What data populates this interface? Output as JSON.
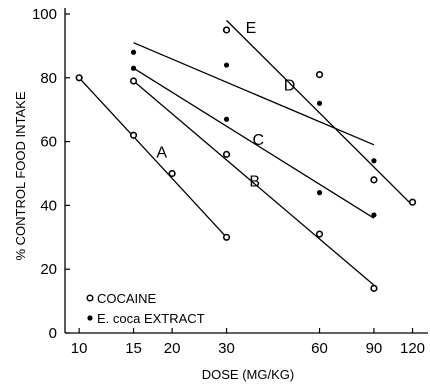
{
  "chart_data": {
    "type": "scatter",
    "title": "",
    "xlabel": "DOSE (MG/KG)",
    "ylabel": "% CONTROL FOOD INTAKE",
    "x_scale": "log",
    "x_ticks": [
      10,
      15,
      20,
      30,
      60,
      90,
      120
    ],
    "x_tick_labels": [
      "10",
      "15",
      "20",
      "30",
      "60",
      "90",
      "120"
    ],
    "y_ticks": [
      0,
      20,
      40,
      60,
      80,
      100
    ],
    "y_tick_labels": [
      "0",
      "20",
      "40",
      "60",
      "80",
      "100"
    ],
    "xlim": [
      9,
      125
    ],
    "ylim": [
      0,
      100
    ],
    "grid": false,
    "legend_position": "bottom-left",
    "legend": [
      {
        "label": "COCAINE",
        "marker": "open-circle"
      },
      {
        "label": "E. coca EXTRACT",
        "marker": "filled-dot"
      }
    ],
    "series": [
      {
        "name": "COCAINE",
        "marker": "open-circle",
        "points": [
          [
            10,
            80
          ],
          [
            15,
            62
          ],
          [
            20,
            50
          ],
          [
            30,
            30
          ],
          [
            15,
            79
          ],
          [
            30,
            56
          ],
          [
            60,
            31
          ],
          [
            90,
            14
          ],
          [
            30,
            95
          ],
          [
            60,
            81
          ],
          [
            90,
            48
          ],
          [
            120,
            41
          ]
        ]
      },
      {
        "name": "E. coca EXTRACT",
        "marker": "filled-dot",
        "points": [
          [
            15,
            88
          ],
          [
            15,
            83
          ],
          [
            30,
            67
          ],
          [
            30,
            84
          ],
          [
            60,
            44
          ],
          [
            60,
            72
          ],
          [
            90,
            37
          ],
          [
            90,
            54
          ]
        ]
      }
    ],
    "fit_lines": [
      {
        "label": "A",
        "from": [
          10,
          80
        ],
        "to": [
          30,
          30
        ],
        "label_at": [
          18.5,
          55
        ]
      },
      {
        "label": "B",
        "from": [
          15,
          79
        ],
        "to": [
          90,
          15
        ],
        "label_at": [
          37,
          46
        ]
      },
      {
        "label": "C",
        "from": [
          15,
          83
        ],
        "to": [
          90,
          36
        ],
        "label_at": [
          38,
          59
        ]
      },
      {
        "label": "D",
        "from": [
          15,
          91
        ],
        "to": [
          90,
          59
        ],
        "label_at": [
          48,
          76
        ]
      },
      {
        "label": "E",
        "from": [
          30,
          98
        ],
        "to": [
          120,
          40
        ],
        "label_at": [
          36,
          94
        ]
      }
    ]
  }
}
